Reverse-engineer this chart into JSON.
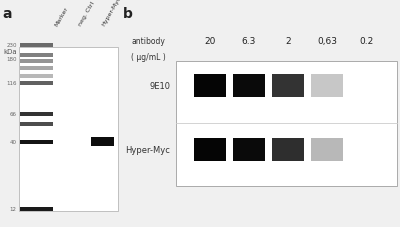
{
  "bg_color": "#f0f0f0",
  "panel_a": {
    "label": "a",
    "col_labels": [
      "Marker",
      "neg. Ctrl",
      "Hyper-Myc"
    ],
    "kda_label": "kDa",
    "marker_bands": [
      {
        "kda": 230,
        "gray": 0.42
      },
      {
        "kda": 190,
        "gray": 0.5
      },
      {
        "kda": 170,
        "gray": 0.58
      },
      {
        "kda": 150,
        "gray": 0.65
      },
      {
        "kda": 130,
        "gray": 0.72
      },
      {
        "kda": 116,
        "gray": 0.38
      },
      {
        "kda": 66,
        "gray": 0.2
      },
      {
        "kda": 55,
        "gray": 0.3
      },
      {
        "kda": 40,
        "gray": 0.08
      },
      {
        "kda": 12,
        "gray": 0.1
      }
    ],
    "marker_labels": [
      230,
      180,
      116,
      66,
      40,
      12
    ],
    "hyper_myc_band": {
      "kda": 40,
      "gray": 0.05
    }
  },
  "panel_b": {
    "label": "b",
    "conc_label_line1": "antibody",
    "conc_label_line2": "( μg/mL )",
    "concentrations": [
      "20",
      "6.3",
      "2",
      "0,63",
      "0.2"
    ],
    "row_labels": [
      "9E10",
      "Hyper-Myc"
    ],
    "bands_9E10": [
      0.02,
      0.04,
      0.2,
      0.78,
      1.0
    ],
    "bands_HyperMyc": [
      0.02,
      0.04,
      0.18,
      0.72,
      1.0
    ]
  }
}
